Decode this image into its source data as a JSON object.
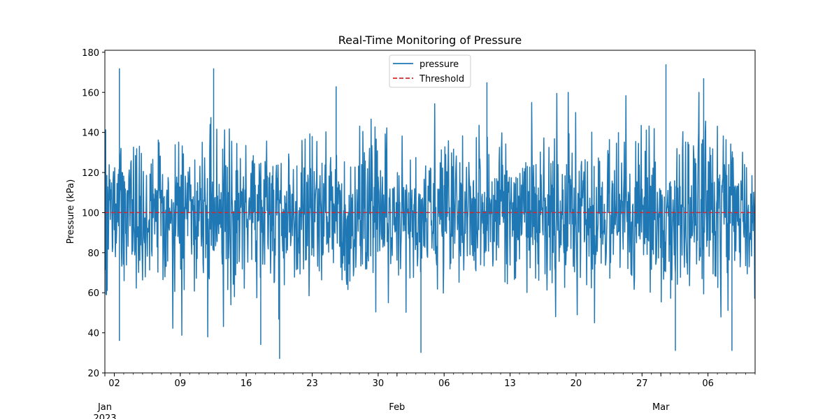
{
  "chart_data": {
    "type": "line",
    "title": "Real-Time Monitoring of Pressure",
    "xlabel": "",
    "ylabel": "Pressure (kPa)",
    "ylim": [
      20,
      181
    ],
    "xlim": [
      "2023-01-01",
      "2023-03-11"
    ],
    "yticks": [
      20,
      40,
      60,
      80,
      100,
      120,
      140,
      160,
      180
    ],
    "x_major_ticks": [
      {
        "date": "2023-01-02",
        "label": "02"
      },
      {
        "date": "2023-01-09",
        "label": "09"
      },
      {
        "date": "2023-01-16",
        "label": "16"
      },
      {
        "date": "2023-01-23",
        "label": "23"
      },
      {
        "date": "2023-01-30",
        "label": "30"
      },
      {
        "date": "2023-02-06",
        "label": "06"
      },
      {
        "date": "2023-02-13",
        "label": "13"
      },
      {
        "date": "2023-02-20",
        "label": "20"
      },
      {
        "date": "2023-02-27",
        "label": "27"
      },
      {
        "date": "2023-03-06",
        "label": "06"
      }
    ],
    "x_month_labels": [
      {
        "date": "2023-01-01",
        "label": "Jan",
        "sublabel": "2023"
      },
      {
        "date": "2023-02-01",
        "label": "Feb"
      },
      {
        "date": "2023-03-01",
        "label": "Mar"
      }
    ],
    "grid": false,
    "legend_placement": "upper center",
    "series": [
      {
        "name": "pressure",
        "color": "#1f77b4",
        "style": "solid",
        "sampling": "hourly",
        "start": "2023-01-01",
        "end": "2023-03-11",
        "mean": 100,
        "std": 20,
        "notable_peaks": [
          {
            "x": "2023-01-02",
            "y": 172
          },
          {
            "x": "2023-01-12",
            "y": 172
          },
          {
            "x": "2023-03-01",
            "y": 174
          },
          {
            "x": "2023-03-05",
            "y": 167
          },
          {
            "x": "2023-01-25",
            "y": 163
          },
          {
            "x": "2023-02-10",
            "y": 165
          }
        ],
        "notable_troughs": [
          {
            "x": "2023-01-19",
            "y": 27
          },
          {
            "x": "2023-02-03",
            "y": 30
          },
          {
            "x": "2023-03-02",
            "y": 31
          },
          {
            "x": "2023-03-08",
            "y": 31
          },
          {
            "x": "2023-01-17",
            "y": 34
          },
          {
            "x": "2023-01-02",
            "y": 36
          }
        ]
      },
      {
        "name": "Threshold",
        "color": "#d62728",
        "style": "dashed",
        "value": 100
      }
    ]
  }
}
